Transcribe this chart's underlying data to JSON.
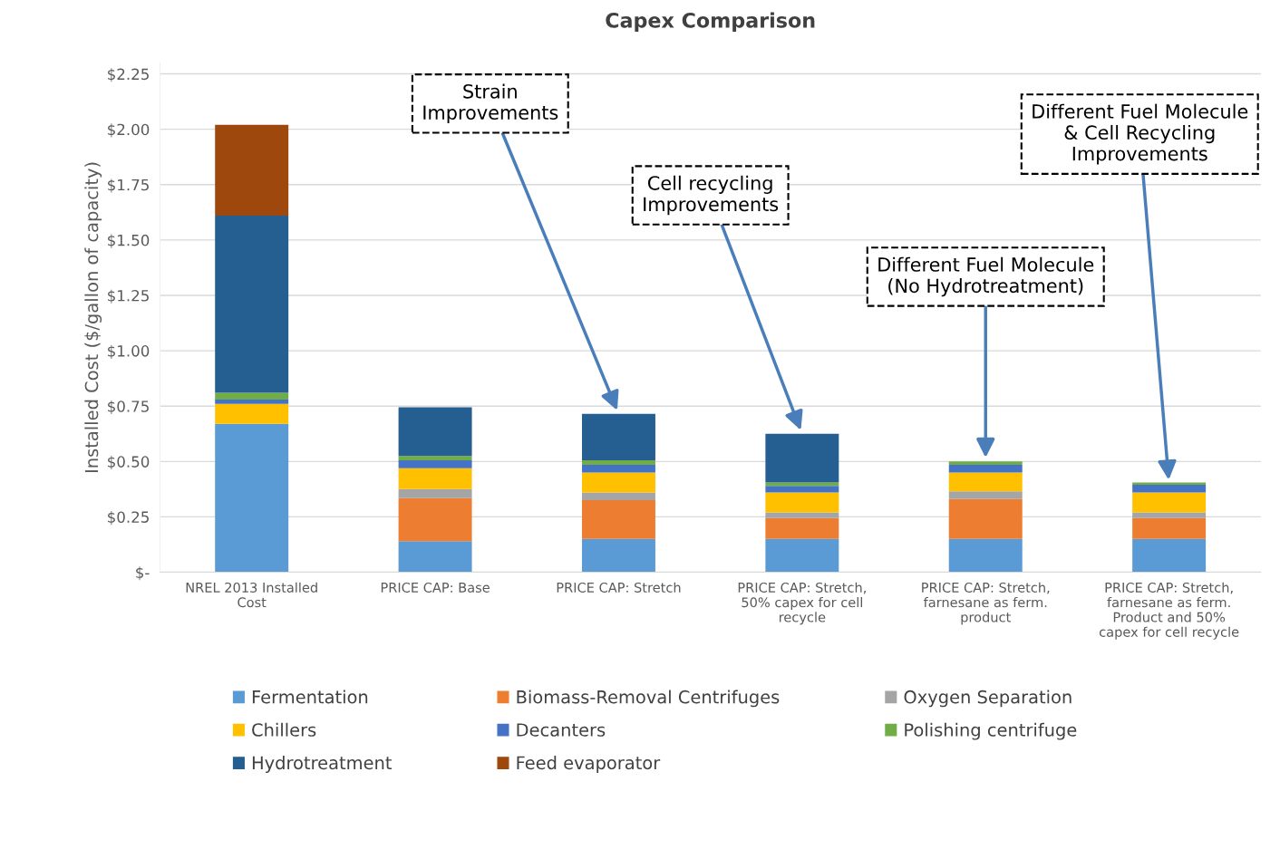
{
  "chart_data": {
    "type": "bar",
    "stacked": true,
    "title": "Capex Comparison",
    "ylabel": "Installed Cost ($/gallon of capacity)",
    "categories": [
      "NREL 2013 Installed\nCost",
      "PRICE CAP: Base",
      "PRICE CAP: Stretch",
      "PRICE CAP: Stretch,\n50% capex for cell\nrecycle",
      "PRICE CAP: Stretch,\nfarnesane as ferm.\nproduct",
      "PRICE CAP: Stretch,\nfarnesane as ferm.\nProduct and 50%\ncapex for cell recycle"
    ],
    "series": [
      {
        "name": "Fermentation",
        "color": "#5b9bd5",
        "values": [
          0.67,
          0.14,
          0.15,
          0.15,
          0.15,
          0.15
        ]
      },
      {
        "name": "Biomass-Removal Centrifuges",
        "color": "#ed7d31",
        "values": [
          0,
          0.195,
          0.175,
          0.095,
          0.18,
          0.095
        ]
      },
      {
        "name": "Oxygen Separation",
        "color": "#a5a5a5",
        "values": [
          0,
          0.04,
          0.035,
          0.025,
          0.035,
          0.025
        ]
      },
      {
        "name": "Chillers",
        "color": "#ffc000",
        "values": [
          0.09,
          0.095,
          0.09,
          0.09,
          0.085,
          0.09
        ]
      },
      {
        "name": "Decanters",
        "color": "#4472c4",
        "values": [
          0.02,
          0.035,
          0.035,
          0.03,
          0.035,
          0.035
        ]
      },
      {
        "name": "Polishing centrifuge",
        "color": "#70ad47",
        "values": [
          0.03,
          0.02,
          0.02,
          0.015,
          0.015,
          0.01
        ]
      },
      {
        "name": "Hydrotreatment",
        "color": "#255e91",
        "values": [
          0.8,
          0.22,
          0.21,
          0.22,
          0,
          0
        ]
      },
      {
        "name": "Feed evaporator",
        "color": "#9e480e",
        "values": [
          0.41,
          0,
          0,
          0,
          0,
          0
        ]
      }
    ],
    "ylim": [
      0,
      2.3
    ],
    "yticks": [
      {
        "value": 0,
        "label": "$-"
      },
      {
        "value": 0.25,
        "label": "$0.25"
      },
      {
        "value": 0.5,
        "label": "$0.50"
      },
      {
        "value": 0.75,
        "label": "$0.75"
      },
      {
        "value": 1.0,
        "label": "$1.00"
      },
      {
        "value": 1.25,
        "label": "$1.25"
      },
      {
        "value": 1.5,
        "label": "$1.50"
      },
      {
        "value": 1.75,
        "label": "$1.75"
      },
      {
        "value": 2.0,
        "label": "$2.00"
      },
      {
        "value": 2.25,
        "label": "$2.25"
      }
    ],
    "grid": "y",
    "legend": "bottom",
    "annotations": [
      {
        "text": "Strain\nImprovements",
        "x": "PRICE CAP: Stretch",
        "y": 0.715
      },
      {
        "text": "Cell recycling\nImprovements",
        "x": "PRICE CAP: Stretch,\n50% capex for cell\nrecycle",
        "y": 0.625
      },
      {
        "text": "Different Fuel Molecule\n(No Hydrotreatment)",
        "x": "PRICE CAP: Stretch,\nfarnesane as ferm.\nproduct",
        "y": 0.5
      },
      {
        "text": "Different Fuel Molecule\n& Cell Recycling\nImprovements",
        "x": "PRICE CAP: Stretch,\nfarnesane as ferm.\nProduct and 50%\ncapex for cell recycle",
        "y": 0.4
      }
    ]
  }
}
